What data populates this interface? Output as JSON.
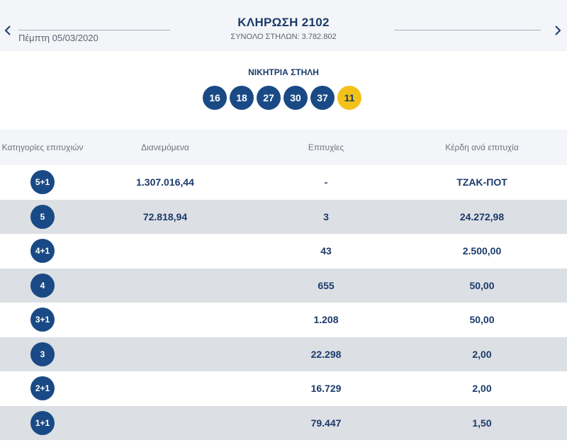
{
  "header": {
    "title": "ΚΛΗΡΩΣΗ 2102",
    "date": "Πέμπτη 05/03/2020",
    "total_label": "ΣΥΝΟΛΟ ΣΤΗΛΩΝ: 3.782.802"
  },
  "winning": {
    "title": "ΝΙΚΗΤΡΙΑ ΣΤΗΛΗ",
    "numbers": [
      "16",
      "18",
      "27",
      "30",
      "37"
    ],
    "bonus": "11",
    "colors": {
      "main": "#1a4a85",
      "bonus": "#f2c21b"
    }
  },
  "table": {
    "headers": {
      "category": "Κατηγορίες επιτυχιών",
      "distributed": "Διανεμόμενα",
      "winners": "Επιτυχίες",
      "prize": "Κέρδη ανά επιτυχία"
    },
    "rows": [
      {
        "category": "5+1",
        "distributed": "1.307.016,44",
        "winners": "-",
        "prize": "ΤΖΑΚ-ΠΟΤ"
      },
      {
        "category": "5",
        "distributed": "72.818,94",
        "winners": "3",
        "prize": "24.272,98"
      },
      {
        "category": "4+1",
        "distributed": "",
        "winners": "43",
        "prize": "2.500,00"
      },
      {
        "category": "4",
        "distributed": "",
        "winners": "655",
        "prize": "50,00"
      },
      {
        "category": "3+1",
        "distributed": "",
        "winners": "1.208",
        "prize": "50,00"
      },
      {
        "category": "3",
        "distributed": "",
        "winners": "22.298",
        "prize": "2,00"
      },
      {
        "category": "2+1",
        "distributed": "",
        "winners": "16.729",
        "prize": "2,00"
      },
      {
        "category": "1+1",
        "distributed": "",
        "winners": "79.447",
        "prize": "1,50"
      }
    ]
  },
  "icons": {
    "prev": "chevron-left-icon",
    "next": "chevron-right-icon"
  }
}
